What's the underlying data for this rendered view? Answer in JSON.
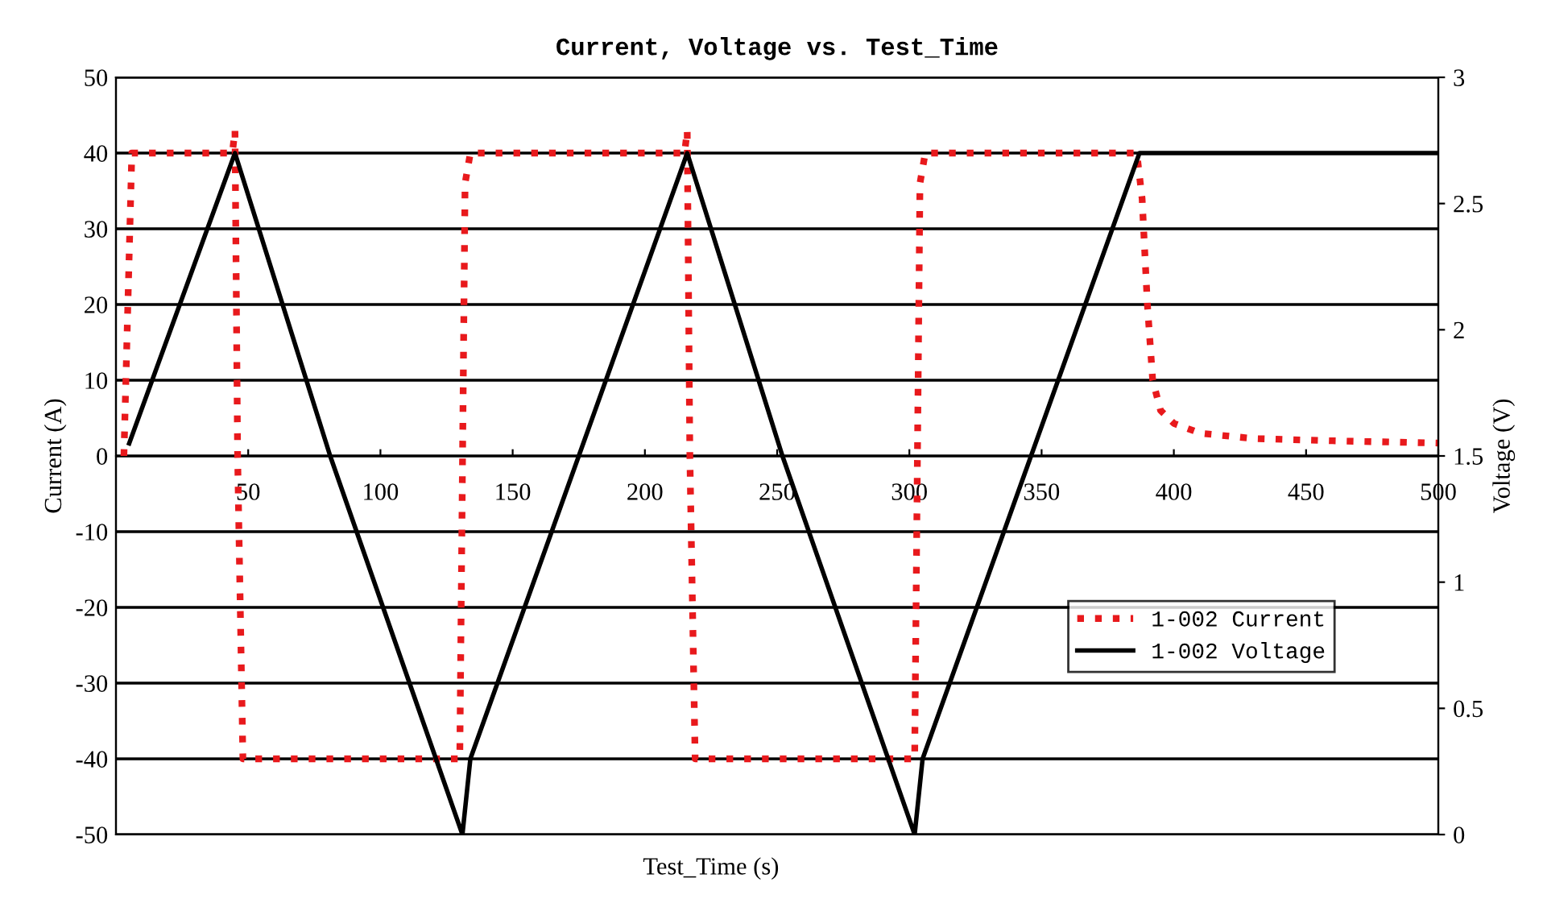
{
  "chart_data": {
    "type": "line",
    "title": "Current, Voltage vs. Test_Time",
    "xlabel": "Test_Time (s)",
    "ylabel": "Current (A)",
    "y2label": "Voltage (V)",
    "xlim": [
      0,
      500
    ],
    "xticks": [
      50,
      100,
      150,
      200,
      250,
      300,
      350,
      400,
      450,
      500
    ],
    "ylim": [
      -50,
      50
    ],
    "yticks": [
      -50,
      -40,
      -30,
      -20,
      -10,
      0,
      10,
      20,
      30,
      40,
      50
    ],
    "y2lim": [
      0,
      3
    ],
    "y2ticks": [
      0,
      0.5,
      1,
      1.5,
      2,
      2.5,
      3
    ],
    "grid": "y",
    "legend": "lower right",
    "series": [
      {
        "name": "1-002 Current",
        "color": "#e8191c",
        "line_style": "dotted",
        "x": [
          3,
          6,
          7,
          44,
          45,
          46,
          48,
          130,
          132,
          134,
          215,
          216,
          217,
          219,
          302,
          304,
          306,
          386,
          388,
          390,
          392,
          395,
          400,
          410,
          430,
          460,
          500
        ],
        "values": [
          0,
          40,
          40,
          40,
          43,
          0,
          -40,
          -40,
          36,
          40,
          40,
          43,
          0,
          -40,
          -40,
          36,
          40,
          40,
          34,
          20,
          10,
          6,
          4.3,
          3,
          2.3,
          2,
          1.7
        ]
      },
      {
        "name": "1-002 Voltage",
        "color": "#000000",
        "line_style": "solid",
        "axis": "y2",
        "x": [
          5,
          45,
          81,
          131,
          134,
          216,
          252,
          302,
          305,
          387,
          500
        ],
        "values": [
          1.55,
          2.7,
          1.5,
          0,
          0.3,
          2.7,
          1.5,
          0,
          0.3,
          2.7,
          2.7
        ]
      }
    ]
  }
}
